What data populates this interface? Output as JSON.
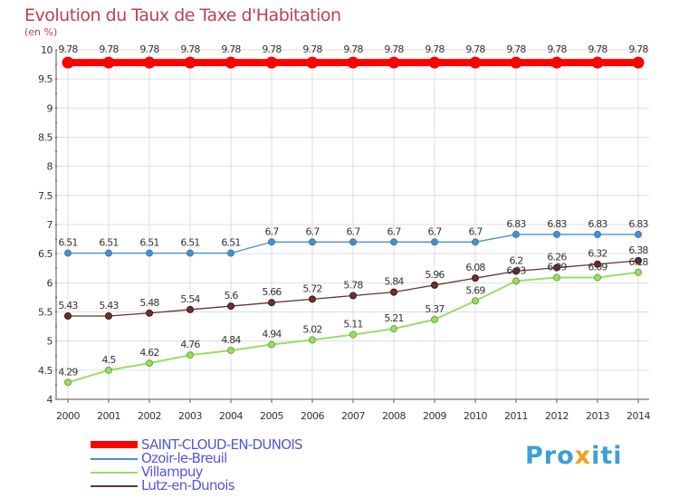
{
  "chart_data": {
    "type": "line",
    "title": "Evolution du Taux de Taxe d'Habitation",
    "ylabel": "(en %)",
    "xlabel": "",
    "ylim": [
      4,
      10
    ],
    "yticks": [
      "4",
      "4.5",
      "5",
      "5.5",
      "6",
      "6.5",
      "7",
      "7.5",
      "8",
      "8.5",
      "9",
      "9.5",
      "10"
    ],
    "categories": [
      "2000",
      "2001",
      "2002",
      "2003",
      "2004",
      "2005",
      "2006",
      "2007",
      "2008",
      "2009",
      "2010",
      "2011",
      "2012",
      "2013",
      "2014"
    ],
    "grid": true,
    "series": [
      {
        "name": "SAINT-CLOUD-EN-DUNOIS",
        "color": "#ff0000",
        "values": [
          9.78,
          9.78,
          9.78,
          9.78,
          9.78,
          9.78,
          9.78,
          9.78,
          9.78,
          9.78,
          9.78,
          9.78,
          9.78,
          9.78,
          9.78
        ],
        "labels": [
          "9.78",
          "9.78",
          "9.78",
          "9.78",
          "9.78",
          "9.78",
          "9.78",
          "9.78",
          "9.78",
          "9.78",
          "9.78",
          "9.78",
          "9.78",
          "9.78",
          "9.78"
        ]
      },
      {
        "name": "Ozoir-le-Breuil",
        "color": "#4a90c8",
        "values": [
          6.51,
          6.51,
          6.51,
          6.51,
          6.51,
          6.7,
          6.7,
          6.7,
          6.7,
          6.7,
          6.7,
          6.83,
          6.83,
          6.83,
          6.83
        ],
        "labels": [
          "6.51",
          "6.51",
          "6.51",
          "6.51",
          "6.51",
          "6.7",
          "6.7",
          "6.7",
          "6.7",
          "6.7",
          "6.7",
          "6.83",
          "6.83",
          "6.83",
          "6.83"
        ]
      },
      {
        "name": "Villampuy",
        "color": "#99dd66",
        "values": [
          4.29,
          4.5,
          4.62,
          4.76,
          4.84,
          4.94,
          5.02,
          5.11,
          5.21,
          5.37,
          5.69,
          6.03,
          6.09,
          6.09,
          6.18
        ],
        "labels": [
          "4.29",
          "4.5",
          "4.62",
          "4.76",
          "4.84",
          "4.94",
          "5.02",
          "5.11",
          "5.21",
          "5.37",
          "5.69",
          "6.03",
          "6.09",
          "6.09",
          "6.18"
        ]
      },
      {
        "name": "Lutz-en-Dunois",
        "color": "#663333",
        "values": [
          5.43,
          5.43,
          5.48,
          5.54,
          5.6,
          5.66,
          5.72,
          5.78,
          5.84,
          5.96,
          6.08,
          6.2,
          6.26,
          6.32,
          6.38
        ],
        "labels": [
          "5.43",
          "5.43",
          "5.48",
          "5.54",
          "5.6",
          "5.66",
          "5.72",
          "5.78",
          "5.84",
          "5.96",
          "6.08",
          "6.2",
          "6.26",
          "6.32",
          "6.38"
        ]
      }
    ]
  },
  "logo": {
    "part1": "Pro",
    "part2": "x",
    "part3": "iti"
  }
}
